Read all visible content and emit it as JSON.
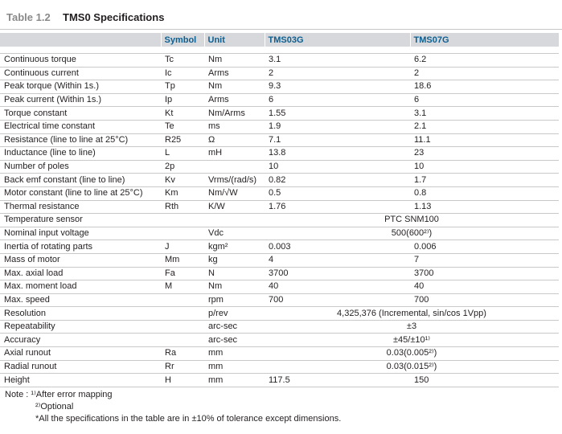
{
  "title": {
    "number": "Table 1.2",
    "text": "TMS0 Specifications"
  },
  "headers": {
    "param": "",
    "symbol": "Symbol",
    "unit": "Unit",
    "model_a": "TMS03G",
    "model_b": "TMS07G"
  },
  "rows": [
    {
      "param": "Continuous torque",
      "symbol": "Tc",
      "unit": "Nm",
      "a": "3.1",
      "b": "6.2",
      "merged": ""
    },
    {
      "param": "Continuous current",
      "symbol": "Ic",
      "unit": "Arms",
      "a": "2",
      "b": "2",
      "merged": ""
    },
    {
      "param": "Peak torque (Within 1s.)",
      "symbol": "Tp",
      "unit": "Nm",
      "a": "9.3",
      "b": "18.6",
      "merged": ""
    },
    {
      "param": "Peak current (Within 1s.)",
      "symbol": "Ip",
      "unit": "Arms",
      "a": "6",
      "b": "6",
      "merged": ""
    },
    {
      "param": "Torque constant",
      "symbol": "Kt",
      "unit": "Nm/Arms",
      "a": "1.55",
      "b": "3.1",
      "merged": ""
    },
    {
      "param": "Electrical time constant",
      "symbol": "Te",
      "unit": "ms",
      "a": "1.9",
      "b": "2.1",
      "merged": ""
    },
    {
      "param": "Resistance (line to line at 25°C)",
      "symbol": "R25",
      "unit": "Ω",
      "a": "7.1",
      "b": "11.1",
      "merged": ""
    },
    {
      "param": "Inductance (line to line)",
      "symbol": "L",
      "unit": "mH",
      "a": "13.8",
      "b": "23",
      "merged": ""
    },
    {
      "param": "Number of poles",
      "symbol": "2p",
      "unit": "",
      "a": "10",
      "b": "10",
      "merged": ""
    },
    {
      "param": "Back emf constant (line to line)",
      "symbol": "Kv",
      "unit": "Vrms/(rad/s)",
      "a": "0.82",
      "b": "1.7",
      "merged": ""
    },
    {
      "param": "Motor constant (line to line at 25°C)",
      "symbol": "Km",
      "unit": "Nm/√W",
      "a": "0.5",
      "b": "0.8",
      "merged": ""
    },
    {
      "param": "Thermal resistance",
      "symbol": "Rth",
      "unit": "K/W",
      "a": "1.76",
      "b": "1.13",
      "merged": ""
    },
    {
      "param": "Temperature sensor",
      "symbol": "",
      "unit": "",
      "a": "",
      "b": "",
      "merged": "PTC SNM100"
    },
    {
      "param": "Nominal input voltage",
      "symbol": "",
      "unit": "Vdc",
      "a": "",
      "b": "",
      "merged": "500(600²⁾)"
    },
    {
      "param": "Inertia of rotating parts",
      "symbol": "J",
      "unit": "kgm²",
      "a": "0.003",
      "b": "0.006",
      "merged": ""
    },
    {
      "param": "Mass of motor",
      "symbol": "Mm",
      "unit": "kg",
      "a": "4",
      "b": "7",
      "merged": ""
    },
    {
      "param": "Max. axial load",
      "symbol": "Fa",
      "unit": "N",
      "a": "3700",
      "b": "3700",
      "merged": ""
    },
    {
      "param": "Max. moment load",
      "symbol": "M",
      "unit": "Nm",
      "a": "40",
      "b": "40",
      "merged": ""
    },
    {
      "param": "Max. speed",
      "symbol": "",
      "unit": "rpm",
      "a": "700",
      "b": "700",
      "merged": ""
    },
    {
      "param": "Resolution",
      "symbol": "",
      "unit": "p/rev",
      "a": "",
      "b": "",
      "merged": "4,325,376 (Incremental, sin/cos 1Vpp)"
    },
    {
      "param": "Repeatability",
      "symbol": "",
      "unit": "arc-sec",
      "a": "",
      "b": "",
      "merged": "±3"
    },
    {
      "param": "Accuracy",
      "symbol": "",
      "unit": "arc-sec",
      "a": "",
      "b": "",
      "merged": "±45/±10¹⁾"
    },
    {
      "param": "Axial runout",
      "symbol": "Ra",
      "unit": "mm",
      "a": "",
      "b": "",
      "merged": "0.03(0.005²⁾)"
    },
    {
      "param": "Radial runout",
      "symbol": "Rr",
      "unit": "mm",
      "a": "",
      "b": "",
      "merged": "0.03(0.015²⁾)"
    },
    {
      "param": "Height",
      "symbol": "H",
      "unit": "mm",
      "a": "117.5",
      "b": "150",
      "merged": ""
    }
  ],
  "notes": {
    "line1": "Note : ¹⁾After error mapping",
    "line2": "²⁾Optional",
    "line3": "*All the specifications in the table are in ±10% of tolerance except dimensions."
  }
}
